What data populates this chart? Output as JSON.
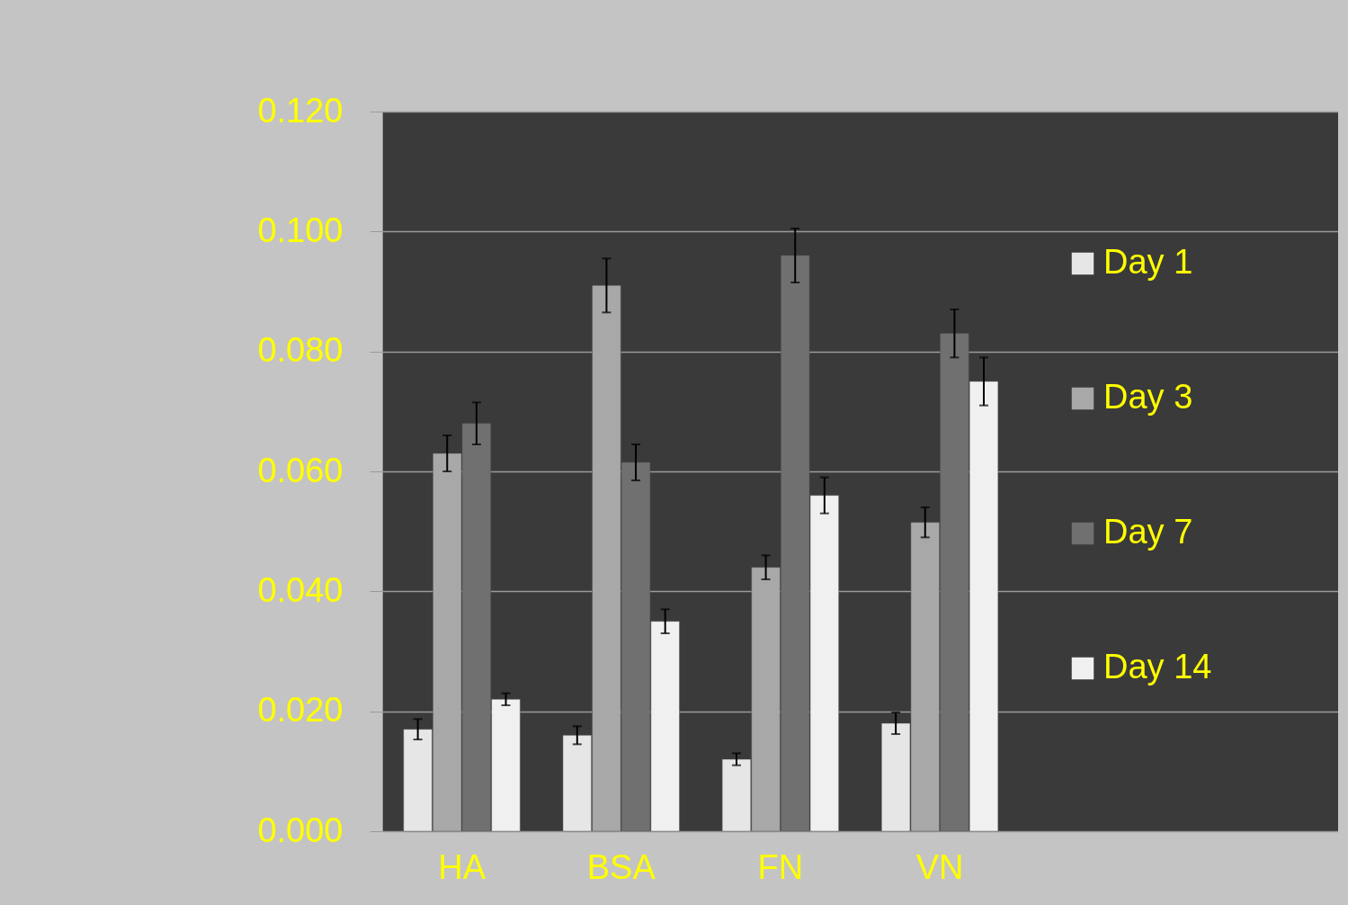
{
  "chart_data": {
    "type": "bar",
    "categories": [
      "HA",
      "BSA",
      "FN",
      "VN"
    ],
    "series": [
      {
        "name": "Day 1",
        "color": "#e6e6e6",
        "values": [
          0.017,
          0.016,
          0.012,
          0.018
        ],
        "errors": [
          0.0017,
          0.0015,
          0.001,
          0.0018
        ]
      },
      {
        "name": "Day 3",
        "color": "#a8a8a8",
        "values": [
          0.063,
          0.091,
          0.044,
          0.0515
        ],
        "errors": [
          0.003,
          0.0045,
          0.002,
          0.0025
        ]
      },
      {
        "name": "Day 7",
        "color": "#707070",
        "values": [
          0.068,
          0.0615,
          0.096,
          0.083
        ],
        "errors": [
          0.0035,
          0.003,
          0.0045,
          0.004
        ]
      },
      {
        "name": "Day 14",
        "color": "#f0f0f0",
        "values": [
          0.022,
          0.035,
          0.056,
          0.075
        ],
        "errors": [
          0.001,
          0.002,
          0.003,
          0.004
        ]
      }
    ],
    "ylim": [
      0,
      0.12
    ],
    "yticks": [
      {
        "value": 0,
        "label": "0.000"
      },
      {
        "value": 0.02,
        "label": "0.020"
      },
      {
        "value": 0.04,
        "label": "0.040"
      },
      {
        "value": 0.06,
        "label": "0.060"
      },
      {
        "value": 0.08,
        "label": "0.080"
      },
      {
        "value": 0.1,
        "label": "0.100"
      },
      {
        "value": 0.12,
        "label": "0.120"
      }
    ],
    "grid": "y",
    "legend": "right"
  }
}
